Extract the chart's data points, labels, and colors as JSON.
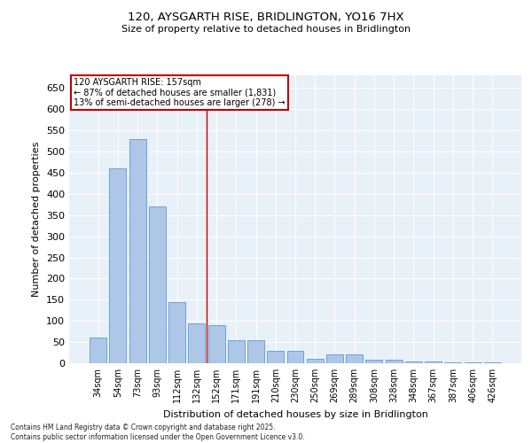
{
  "title": "120, AYSGARTH RISE, BRIDLINGTON, YO16 7HX",
  "subtitle": "Size of property relative to detached houses in Bridlington",
  "xlabel": "Distribution of detached houses by size in Bridlington",
  "ylabel": "Number of detached properties",
  "categories": [
    "34sqm",
    "54sqm",
    "73sqm",
    "93sqm",
    "112sqm",
    "132sqm",
    "152sqm",
    "171sqm",
    "191sqm",
    "210sqm",
    "230sqm",
    "250sqm",
    "269sqm",
    "289sqm",
    "308sqm",
    "328sqm",
    "348sqm",
    "367sqm",
    "387sqm",
    "406sqm",
    "426sqm"
  ],
  "values": [
    60,
    460,
    530,
    370,
    145,
    95,
    90,
    55,
    55,
    30,
    30,
    10,
    20,
    20,
    8,
    8,
    5,
    5,
    3,
    3,
    3
  ],
  "bar_color": "#aec6e8",
  "bar_edge_color": "#5b9bd5",
  "vline_color": "#c00000",
  "annotation_text": "120 AYSGARTH RISE: 157sqm\n← 87% of detached houses are smaller (1,831)\n13% of semi-detached houses are larger (278) →",
  "annotation_box_color": "#c00000",
  "bg_color": "#e8f0f8",
  "footer": "Contains HM Land Registry data © Crown copyright and database right 2025.\nContains public sector information licensed under the Open Government Licence v3.0.",
  "ylim": [
    0,
    680
  ],
  "yticks": [
    0,
    50,
    100,
    150,
    200,
    250,
    300,
    350,
    400,
    450,
    500,
    550,
    600,
    650
  ],
  "vline_pos": 5.5
}
